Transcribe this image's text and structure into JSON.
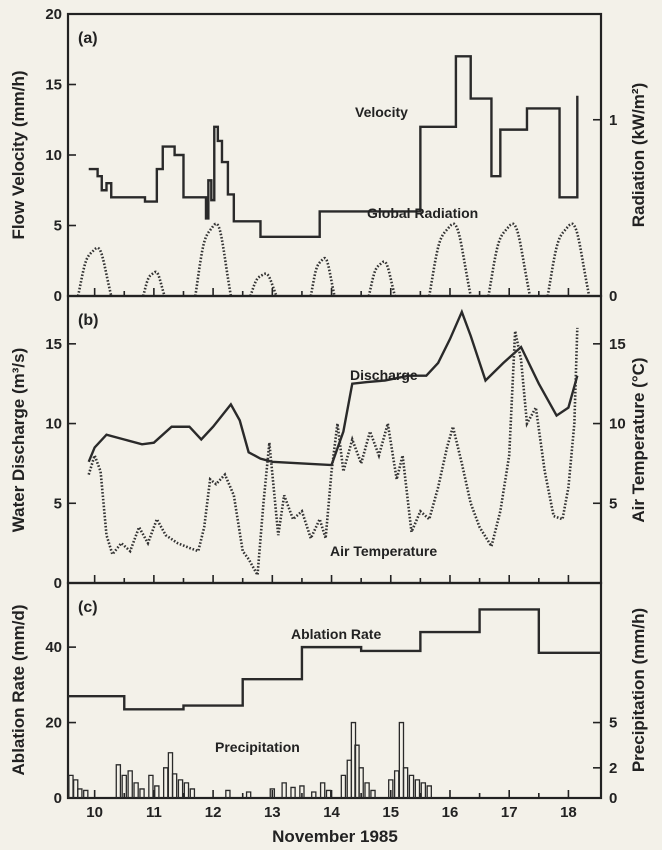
{
  "chart_data": [
    {
      "panel": "(a)",
      "type": "line",
      "ylabel": "Flow Velocity (mm/h)",
      "ylim": [
        0,
        20
      ],
      "yticks": [
        0,
        5,
        10,
        15,
        20
      ],
      "ylabel_right": "Radiation (kW/m²)",
      "ylim_right": [
        0,
        1.6
      ],
      "yticks_right": [
        0,
        1
      ],
      "xlim": [
        9.55,
        18.55
      ],
      "series": [
        {
          "name": "Velocity",
          "style": "step-solid",
          "axis": "left",
          "x": [
            9.9,
            10.05,
            10.12,
            10.2,
            10.28,
            10.45,
            10.6,
            10.85,
            11.05,
            11.15,
            11.35,
            11.5,
            11.75,
            11.88,
            11.92,
            11.97,
            12.02,
            12.08,
            12.15,
            12.25,
            12.35,
            12.6,
            12.8,
            13.1,
            13.8,
            15.5,
            15.95,
            16.1,
            16.35,
            16.7,
            16.85,
            17.3,
            17.85,
            18.15
          ],
          "y": [
            9.0,
            8.5,
            7.5,
            8.0,
            7.0,
            7.0,
            7.0,
            6.7,
            9.0,
            10.6,
            10.0,
            7.0,
            7.0,
            5.5,
            8.2,
            6.8,
            12.0,
            11.0,
            9.5,
            7.2,
            5.3,
            5.3,
            4.2,
            4.2,
            6.0,
            12.0,
            12.0,
            17.0,
            14.0,
            8.5,
            11.8,
            13.3,
            7.0,
            14.2
          ]
        },
        {
          "name": "Global Radiation",
          "style": "dotted",
          "axis": "right",
          "diurnal": [
            {
              "center": 10.0,
              "half": 0.28,
              "peak": 0.28
            },
            {
              "center": 11.0,
              "half": 0.18,
              "peak": 0.14
            },
            {
              "center": 12.0,
              "half": 0.3,
              "peak": 0.42
            },
            {
              "center": 12.85,
              "half": 0.22,
              "peak": 0.13
            },
            {
              "center": 13.85,
              "half": 0.2,
              "peak": 0.22
            },
            {
              "center": 14.85,
              "half": 0.22,
              "peak": 0.2
            },
            {
              "center": 16.0,
              "half": 0.35,
              "peak": 0.42
            },
            {
              "center": 17.0,
              "half": 0.35,
              "peak": 0.42
            },
            {
              "center": 18.0,
              "half": 0.35,
              "peak": 0.42
            }
          ]
        }
      ]
    },
    {
      "panel": "(b)",
      "type": "line",
      "ylabel": "Water Discharge (m³/s)",
      "ylim": [
        0,
        18
      ],
      "yticks": [
        0,
        5,
        10,
        15
      ],
      "ylabel_right": "Air Temperature (°C)",
      "ylim_right": [
        0,
        18
      ],
      "yticks_right": [
        5,
        10,
        15
      ],
      "xlim": [
        9.55,
        18.55
      ],
      "series": [
        {
          "name": "Discharge",
          "style": "solid",
          "axis": "left",
          "x": [
            9.9,
            10.0,
            10.2,
            10.5,
            10.8,
            11.0,
            11.3,
            11.6,
            11.8,
            12.0,
            12.3,
            12.45,
            12.6,
            12.8,
            13.0,
            13.5,
            14.0,
            14.2,
            14.35,
            14.6,
            14.9,
            15.3,
            15.6,
            15.8,
            16.0,
            16.2,
            16.35,
            16.6,
            16.9,
            17.2,
            17.5,
            17.8,
            18.0,
            18.15
          ],
          "y": [
            7.6,
            8.5,
            9.3,
            9.0,
            8.7,
            8.8,
            9.8,
            9.8,
            9.0,
            9.8,
            11.2,
            10.2,
            8.2,
            7.8,
            7.6,
            7.5,
            7.4,
            9.5,
            12.5,
            12.6,
            12.7,
            13.0,
            13.0,
            13.8,
            15.3,
            17.0,
            15.5,
            12.7,
            13.8,
            14.8,
            12.5,
            10.5,
            11.0,
            13.0
          ]
        },
        {
          "name": "Air Temperature",
          "style": "dotted",
          "axis": "right",
          "x": [
            9.9,
            10.0,
            10.1,
            10.2,
            10.3,
            10.45,
            10.6,
            10.75,
            10.9,
            11.05,
            11.2,
            11.4,
            11.6,
            11.75,
            11.85,
            11.95,
            12.05,
            12.2,
            12.35,
            12.5,
            12.6,
            12.75,
            12.85,
            12.95,
            13.1,
            13.2,
            13.35,
            13.5,
            13.65,
            13.8,
            13.9,
            14.0,
            14.1,
            14.2,
            14.35,
            14.5,
            14.65,
            14.8,
            14.95,
            15.1,
            15.2,
            15.35,
            15.5,
            15.65,
            15.8,
            15.95,
            16.05,
            16.2,
            16.35,
            16.5,
            16.7,
            16.85,
            17.0,
            17.1,
            17.2,
            17.3,
            17.45,
            17.6,
            17.75,
            17.9,
            18.0,
            18.1,
            18.15
          ],
          "y": [
            6.8,
            8.0,
            7.0,
            3.0,
            1.8,
            2.5,
            2.0,
            3.5,
            2.5,
            4.0,
            3.0,
            2.5,
            2.2,
            2.0,
            3.5,
            6.5,
            6.2,
            6.8,
            5.5,
            2.0,
            1.5,
            0.5,
            5.0,
            8.8,
            3.0,
            5.5,
            4.0,
            4.5,
            2.8,
            4.0,
            2.8,
            7.0,
            10.0,
            7.0,
            9.0,
            7.5,
            9.5,
            8.0,
            10.0,
            6.5,
            8.0,
            3.2,
            4.5,
            4.0,
            6.0,
            8.5,
            9.8,
            7.5,
            5.0,
            3.5,
            2.3,
            4.5,
            8.0,
            15.8,
            14.0,
            10.0,
            11.0,
            7.0,
            4.2,
            4.0,
            6.0,
            10.0,
            16.0
          ]
        }
      ]
    },
    {
      "panel": "(c)",
      "type": "line",
      "ylabel": "Ablation Rate (mm/d)",
      "ylim": [
        0,
        57
      ],
      "yticks": [
        0,
        20,
        40
      ],
      "ylabel_right": "Precipitation (mm/h)",
      "ylim_right": [
        0,
        14.25
      ],
      "yticks_right": [
        0,
        2,
        5
      ],
      "xlim": [
        9.55,
        18.55
      ],
      "xlabel": "November 1985",
      "xticks": [
        10,
        11,
        12,
        13,
        14,
        15,
        16,
        17,
        18
      ],
      "series": [
        {
          "name": "Ablation Rate",
          "style": "step-solid",
          "axis": "left",
          "x": [
            9.55,
            10.5,
            11.5,
            12.5,
            13.5,
            14.5,
            15.5,
            16.5,
            17.5,
            18.55
          ],
          "y": [
            27,
            23.5,
            24.5,
            31.5,
            40,
            39,
            44,
            50,
            38.5,
            38.5
          ]
        },
        {
          "name": "Precipitation",
          "style": "histogram",
          "axis": "right",
          "bars": [
            [
              9.6,
              1.5
            ],
            [
              9.68,
              1.2
            ],
            [
              9.75,
              0.6
            ],
            [
              9.85,
              0.5
            ],
            [
              10.4,
              2.2
            ],
            [
              10.5,
              1.5
            ],
            [
              10.6,
              1.8
            ],
            [
              10.7,
              1.0
            ],
            [
              10.8,
              0.6
            ],
            [
              10.95,
              1.5
            ],
            [
              11.05,
              0.8
            ],
            [
              11.2,
              2.0
            ],
            [
              11.28,
              3.0
            ],
            [
              11.35,
              1.6
            ],
            [
              11.45,
              1.2
            ],
            [
              11.55,
              1.0
            ],
            [
              11.65,
              0.6
            ],
            [
              12.25,
              0.5
            ],
            [
              12.6,
              0.4
            ],
            [
              13.0,
              0.6
            ],
            [
              13.2,
              1.0
            ],
            [
              13.35,
              0.7
            ],
            [
              13.5,
              0.8
            ],
            [
              13.7,
              0.4
            ],
            [
              13.85,
              1.0
            ],
            [
              13.95,
              0.5
            ],
            [
              14.2,
              1.5
            ],
            [
              14.3,
              2.5
            ],
            [
              14.37,
              5.0
            ],
            [
              14.43,
              3.5
            ],
            [
              14.5,
              2.0
            ],
            [
              14.6,
              1.0
            ],
            [
              14.7,
              0.5
            ],
            [
              15.0,
              1.2
            ],
            [
              15.1,
              1.8
            ],
            [
              15.18,
              5.0
            ],
            [
              15.25,
              2.0
            ],
            [
              15.35,
              1.5
            ],
            [
              15.45,
              1.2
            ],
            [
              15.55,
              1.0
            ],
            [
              15.65,
              0.8
            ]
          ]
        }
      ]
    }
  ]
}
